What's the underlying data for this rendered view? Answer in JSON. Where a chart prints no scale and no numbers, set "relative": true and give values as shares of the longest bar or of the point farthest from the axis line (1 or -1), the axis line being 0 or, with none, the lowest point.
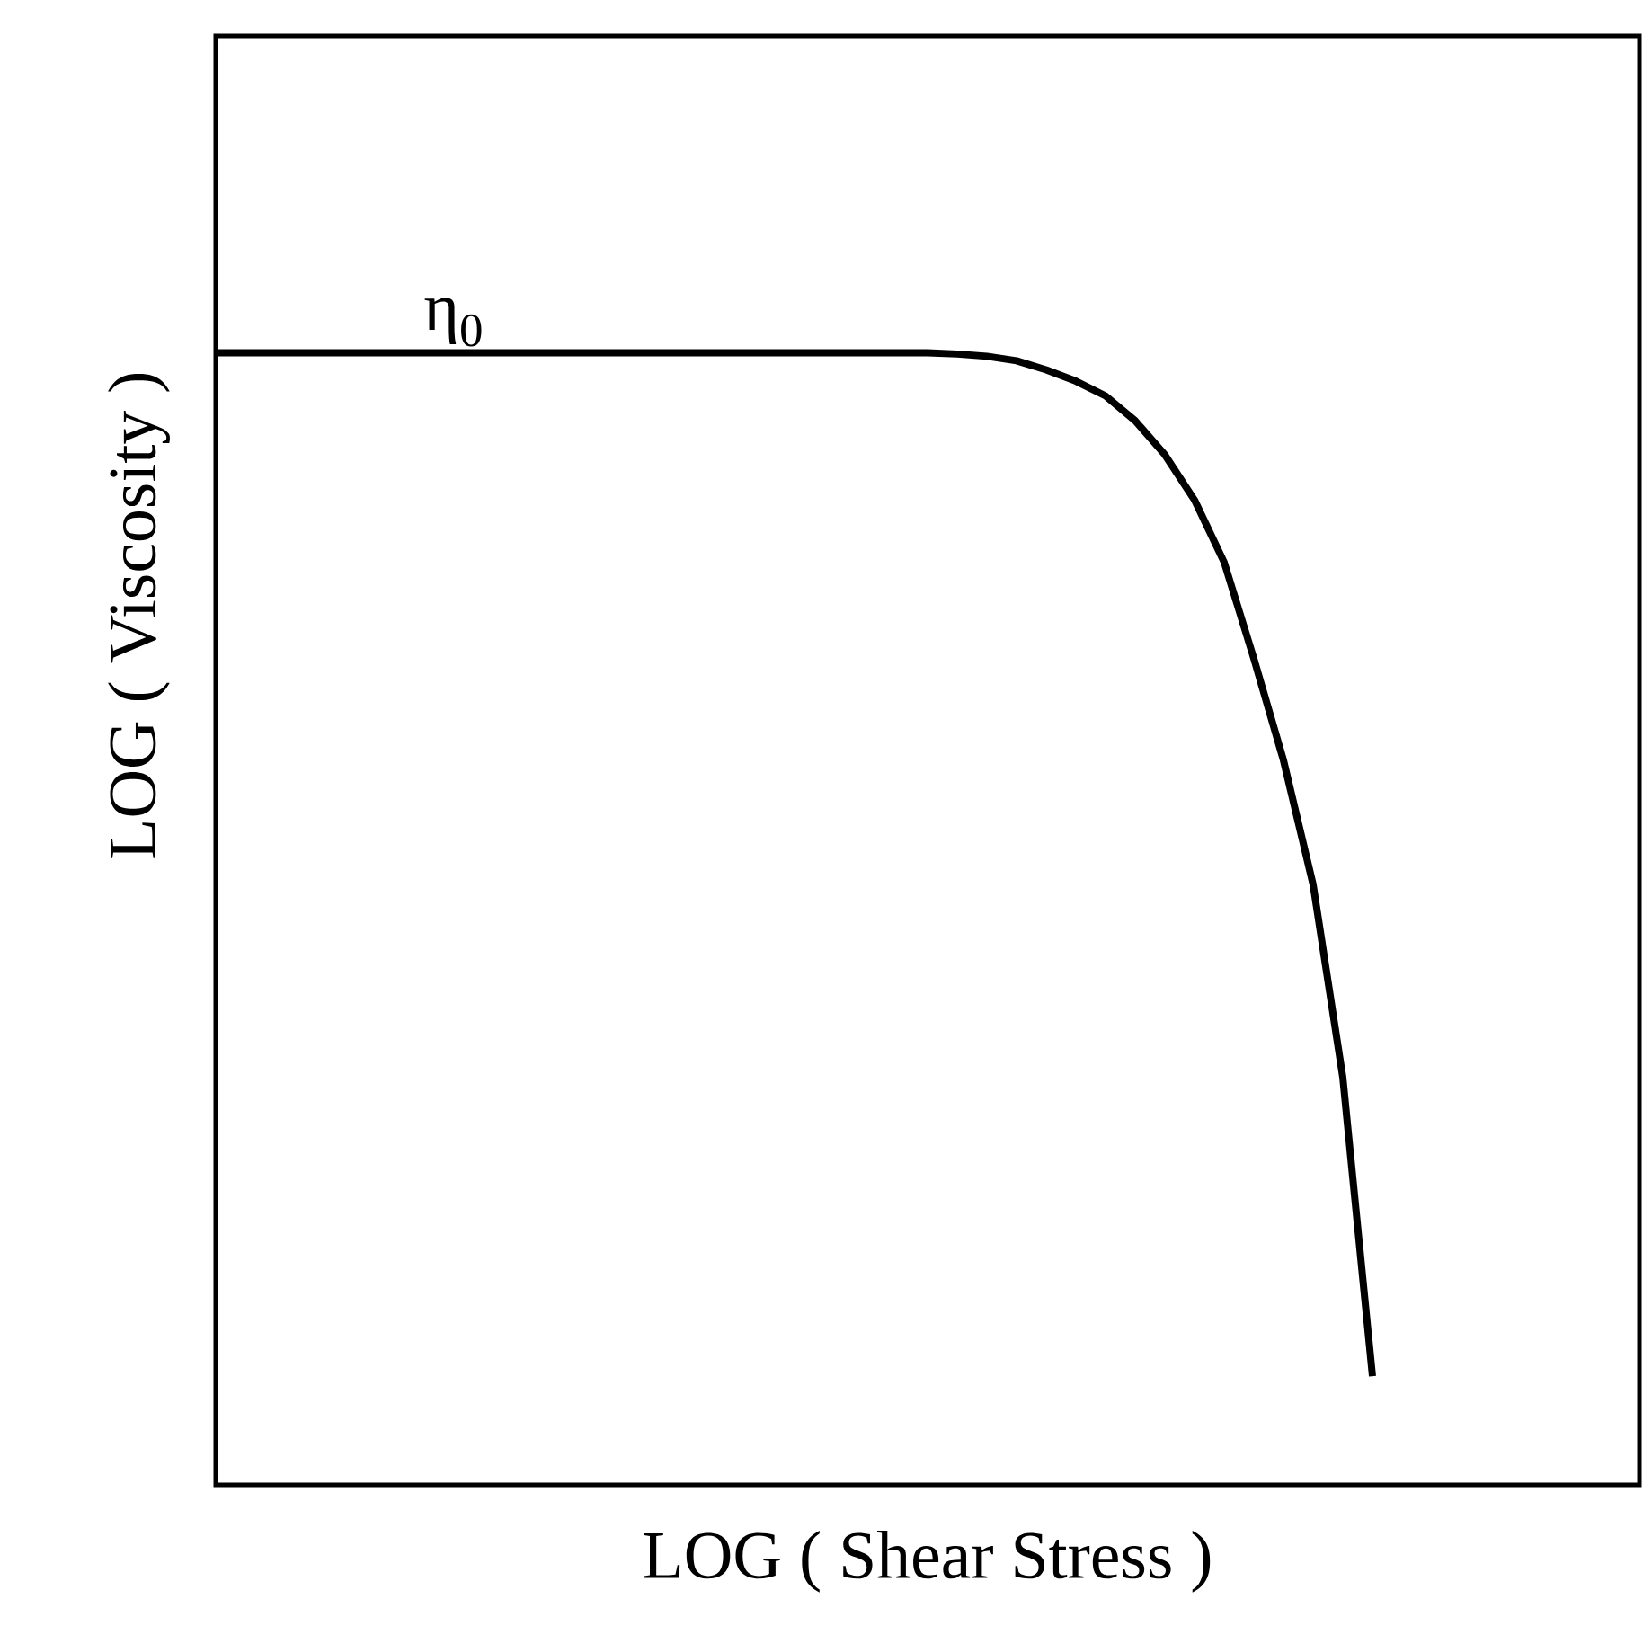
{
  "chart_data": {
    "type": "line",
    "relative": true,
    "xlabel": "LOG  (  Shear Stress  )",
    "ylabel": "LOG  (  Viscosity  )",
    "annotations": [
      "η$_{0}$"
    ],
    "categories": [
      null,
      null,
      null,
      null,
      null,
      null,
      null,
      null,
      null,
      null,
      null,
      null,
      null,
      null,
      null,
      null,
      null,
      null,
      null,
      null,
      null,
      null,
      null,
      null,
      null,
      null,
      null,
      null,
      null,
      null,
      null,
      null,
      null,
      null,
      null,
      null,
      null,
      null,
      null,
      null,
      null,
      null,
      null,
      null,
      null,
      null,
      null,
      null,
      null
    ],
    "color": "#000000",
    "marker": "none",
    "line_style": "solid",
    "values": [
      1,
      1,
      1,
      1,
      1,
      1,
      1,
      1,
      1,
      1,
      1,
      1,
      1,
      1,
      1,
      1,
      1,
      1,
      1,
      1,
      1,
      1,
      1,
      1,
      1,
      0.999,
      0.997,
      0.993,
      0.985,
      0.975,
      0.962,
      0.94,
      0.91,
      0.87,
      0.815,
      0.73,
      0.64,
      0.53,
      0.36,
      0.096,
      null,
      null,
      null,
      null,
      null,
      null,
      null,
      null,
      null
    ]
  }
}
